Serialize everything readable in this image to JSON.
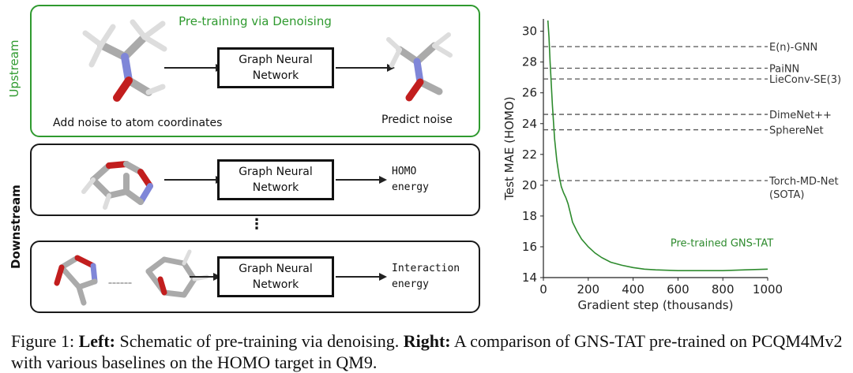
{
  "schematic": {
    "upstream_label": "Upstream",
    "downstream_label": "Downstream",
    "upstream_title": "Pre-training via Denoising",
    "gnn_line1": "Graph Neural",
    "gnn_line2": "Network",
    "add_noise": "Add noise to atom coordinates",
    "predict_noise": "Predict noise",
    "task1_line1": "HOMO",
    "task1_line2": "energy",
    "task2_line1": "Interaction",
    "task2_line2": "energy",
    "ellipsis": "⋮"
  },
  "caption": {
    "prefix": "Figure 1: ",
    "left_bold": "Left:",
    "left_text": " Schematic of pre-training via denoising. ",
    "right_bold": "Right:",
    "right_text": " A comparison of GNS-TAT pre-trained on PCQM4Mv2 with various baselines on the HOMO target in QM9."
  },
  "colors": {
    "green": "#2f9a2f",
    "baseline": "#555555",
    "curve": "#2e8b2e"
  },
  "chart_data": {
    "type": "line",
    "xlabel": "Gradient step (thousands)",
    "ylabel": "Test MAE (HOMO)",
    "xlim": [
      0,
      1000
    ],
    "ylim": [
      14,
      30.8
    ],
    "xticks": [
      0,
      200,
      400,
      600,
      800,
      1000
    ],
    "yticks": [
      14,
      16,
      18,
      20,
      22,
      24,
      26,
      28,
      30
    ],
    "baselines": [
      {
        "name": "E(n)-GNN",
        "value": 29.0
      },
      {
        "name": "PaiNN",
        "value": 27.6
      },
      {
        "name": "LieConv-SE(3)",
        "value": 26.9
      },
      {
        "name": "DimeNet++",
        "value": 24.6
      },
      {
        "name": "SphereNet",
        "value": 23.6
      },
      {
        "name": "Torch-MD-Net\n(SOTA)",
        "value": 20.3
      }
    ],
    "series": [
      {
        "name": "Pre-trained GNS-TAT",
        "x": [
          20,
          25,
          30,
          40,
          50,
          60,
          70,
          80,
          90,
          100,
          110,
          120,
          130,
          150,
          170,
          200,
          230,
          260,
          300,
          350,
          400,
          450,
          500,
          600,
          700,
          800,
          900,
          1000
        ],
        "y": [
          30.7,
          29.6,
          28.0,
          25.2,
          23.0,
          21.6,
          20.6,
          19.9,
          19.5,
          19.2,
          18.8,
          18.2,
          17.6,
          17.0,
          16.5,
          16.0,
          15.6,
          15.3,
          15.0,
          14.8,
          14.65,
          14.55,
          14.5,
          14.45,
          14.45,
          14.45,
          14.5,
          14.55
        ]
      }
    ]
  }
}
